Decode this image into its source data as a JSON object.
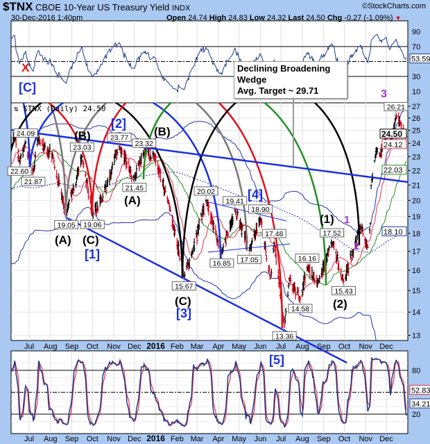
{
  "header": {
    "symbol": "$TNX",
    "name": "CBOE 10-Year US Treasury Yield",
    "exchange": "INDX",
    "brand": "©StockCharts.com",
    "datetime": "30-Dec-2016 1:40pm",
    "open_label": "Open",
    "open": "24.74",
    "high_label": "High",
    "high": "24.83",
    "low_label": "Low",
    "low": "24.32",
    "last_label": "Last",
    "last": "24.50",
    "chg_label": "Chg",
    "chg": "-0.27 (-1.09%)",
    "chg_icon": "down-triangle-icon"
  },
  "price_legend": "$TNX (Daily) 24.50",
  "callout": {
    "line1": "Declining Broadening",
    "line2": "Wedge",
    "line3": "Avg. Target ~ 29.71"
  },
  "wave_labels": {
    "x": "X",
    "c_bracket": "[C]",
    "three": "3",
    "b1": "(B)",
    "two_bracket": "[2]",
    "b2": "(B)",
    "a2": "(A)",
    "a1": "(A)",
    "c1": "(C)",
    "one_bracket": "[1]",
    "c3": "(C)",
    "three_bracket": "[3]",
    "four_bracket": "[4]",
    "w1": "(1)",
    "p1": "1",
    "p2": "2",
    "w2": "(2)",
    "five_bracket": "[5]"
  },
  "colors": {
    "background": "#a9c8f2",
    "up_bar": "#000000",
    "down_bar": "#d0021b",
    "ma_short": "#e0304a",
    "ma_mid": "#1f8f1f",
    "ma_long": "#2233aa",
    "trendline": "#1a2fe0",
    "wave_purple": "#a030e0"
  },
  "chart_data": [
    {
      "type": "line",
      "panel": "RSI",
      "yticks": [
        90,
        70,
        30,
        10
      ],
      "ylim": [
        0,
        100
      ],
      "reference_lines": [
        70,
        50,
        30
      ],
      "last_value": "53.59"
    },
    {
      "type": "ohlc",
      "panel": "price",
      "title": "$TNX (Daily) 24.50",
      "scale": "log",
      "ylim": [
        12.7,
        27.5
      ],
      "yticks": [
        27,
        26,
        25,
        24,
        23,
        22,
        21,
        20,
        19,
        18,
        17,
        16,
        15,
        14,
        13
      ],
      "xticks": [
        "Jul",
        "Aug",
        "Sep",
        "Oct",
        "Nov",
        "Dec",
        "2016",
        "Feb",
        "Mar",
        "Apr",
        "May",
        "Jun",
        "Jul",
        "Aug",
        "Sep",
        "Oct",
        "Nov",
        "Dec"
      ],
      "xtick_dates": [
        "2015-07-01",
        "2015-08-01",
        "2015-09-01",
        "2015-10-01",
        "2015-11-01",
        "2015-12-01",
        "2016-01-01",
        "2016-02-01",
        "2016-03-01",
        "2016-04-01",
        "2016-05-01",
        "2016-06-01",
        "2016-07-01",
        "2016-08-01",
        "2016-09-01",
        "2016-10-01",
        "2016-11-01",
        "2016-12-01"
      ],
      "path": [
        [
          "2014-09-15",
          26.2
        ],
        [
          "2014-10-15",
          20.0
        ],
        [
          "2014-12-05",
          23.1
        ],
        [
          "2015-01-30",
          16.4
        ],
        [
          "2015-03-06",
          22.4
        ],
        [
          "2015-04-17",
          18.5
        ],
        [
          "2015-06-10",
          24.8
        ],
        [
          "2015-06-17",
          22.6
        ],
        [
          "2015-06-26",
          24.09
        ],
        [
          "2015-07-07",
          21.87
        ],
        [
          "2015-07-14",
          24.4
        ],
        [
          "2015-08-05",
          22.9
        ],
        [
          "2015-08-24",
          19.05
        ],
        [
          "2015-09-16",
          23.03
        ],
        [
          "2015-10-01",
          19.06
        ],
        [
          "2015-10-15",
          20.0
        ],
        [
          "2015-11-09",
          23.77
        ],
        [
          "2015-12-01",
          21.45
        ],
        [
          "2015-12-15",
          23.32
        ],
        [
          "2015-12-29",
          23.1
        ],
        [
          "2016-01-20",
          19.8
        ],
        [
          "2016-02-11",
          15.67
        ],
        [
          "2016-02-24",
          17.0
        ],
        [
          "2016-03-14",
          20.02
        ],
        [
          "2016-04-06",
          16.85
        ],
        [
          "2016-04-25",
          19.41
        ],
        [
          "2016-05-16",
          17.05
        ],
        [
          "2016-06-01",
          18.9
        ],
        [
          "2016-06-16",
          15.6
        ],
        [
          "2016-06-21",
          17.48
        ],
        [
          "2016-07-06",
          13.36
        ],
        [
          "2016-07-13",
          15.6
        ],
        [
          "2016-07-29",
          14.58
        ],
        [
          "2016-08-08",
          16.16
        ],
        [
          "2016-08-25",
          15.4
        ],
        [
          "2016-09-13",
          17.52
        ],
        [
          "2016-09-30",
          15.43
        ],
        [
          "2016-10-25",
          18.4
        ],
        [
          "2016-11-04",
          17.2
        ],
        [
          "2016-11-08",
          18.6
        ],
        [
          "2016-11-09",
          21.0
        ],
        [
          "2016-11-14",
          22.7
        ],
        [
          "2016-11-18",
          23.6
        ],
        [
          "2016-11-22",
          23.0
        ],
        [
          "2016-12-01",
          24.8
        ],
        [
          "2016-12-06",
          23.7
        ],
        [
          "2016-12-15",
          26.21
        ],
        [
          "2016-12-22",
          25.5
        ],
        [
          "2016-12-30",
          24.5
        ]
      ],
      "pivot_labels": [
        {
          "date": "2015-06-26",
          "value": "24.09",
          "pos": "above"
        },
        {
          "date": "2015-06-17",
          "value": "22.60",
          "pos": "below"
        },
        {
          "date": "2015-07-07",
          "value": "21.87",
          "pos": "below"
        },
        {
          "date": "2015-09-16",
          "value": "23.03",
          "pos": "above"
        },
        {
          "date": "2015-08-24",
          "value": "19.05",
          "pos": "below"
        },
        {
          "date": "2015-10-01",
          "value": "19.06",
          "pos": "below"
        },
        {
          "date": "2015-11-09",
          "value": "23.77",
          "pos": "above"
        },
        {
          "date": "2015-12-01",
          "value": "21.45",
          "pos": "below"
        },
        {
          "date": "2015-12-15",
          "value": "23.32",
          "pos": "above"
        },
        {
          "date": "2016-02-11",
          "value": "15.67",
          "pos": "below"
        },
        {
          "date": "2016-03-14",
          "value": "20.02",
          "pos": "above"
        },
        {
          "date": "2016-04-06",
          "value": "16.85",
          "pos": "below"
        },
        {
          "date": "2016-04-25",
          "value": "19.41",
          "pos": "above"
        },
        {
          "date": "2016-05-16",
          "value": "17.05",
          "pos": "below"
        },
        {
          "date": "2016-06-01",
          "value": "18.90",
          "pos": "above"
        },
        {
          "date": "2016-06-21",
          "value": "17.48",
          "pos": "above"
        },
        {
          "date": "2016-07-06",
          "value": "13.36",
          "pos": "below"
        },
        {
          "date": "2016-07-29",
          "value": "14.58",
          "pos": "below"
        },
        {
          "date": "2016-08-08",
          "value": "16.16",
          "pos": "above"
        },
        {
          "date": "2016-09-13",
          "value": "17.52",
          "pos": "above"
        },
        {
          "date": "2016-09-30",
          "value": "15.43",
          "pos": "below"
        },
        {
          "date": "2016-12-15",
          "value": "26.21",
          "pos": "above"
        }
      ],
      "last_values": {
        "price": "24.50",
        "ma_short": "24.12",
        "ma_mid": "22.03",
        "ma_long": "18.10"
      }
    },
    {
      "type": "line",
      "panel": "stochastic",
      "yticks": [
        80,
        20
      ],
      "ylim": [
        0,
        100
      ],
      "reference_lines": [
        80,
        50,
        20
      ],
      "last_values": {
        "slow": "52.83",
        "fast": "34.21"
      }
    }
  ]
}
